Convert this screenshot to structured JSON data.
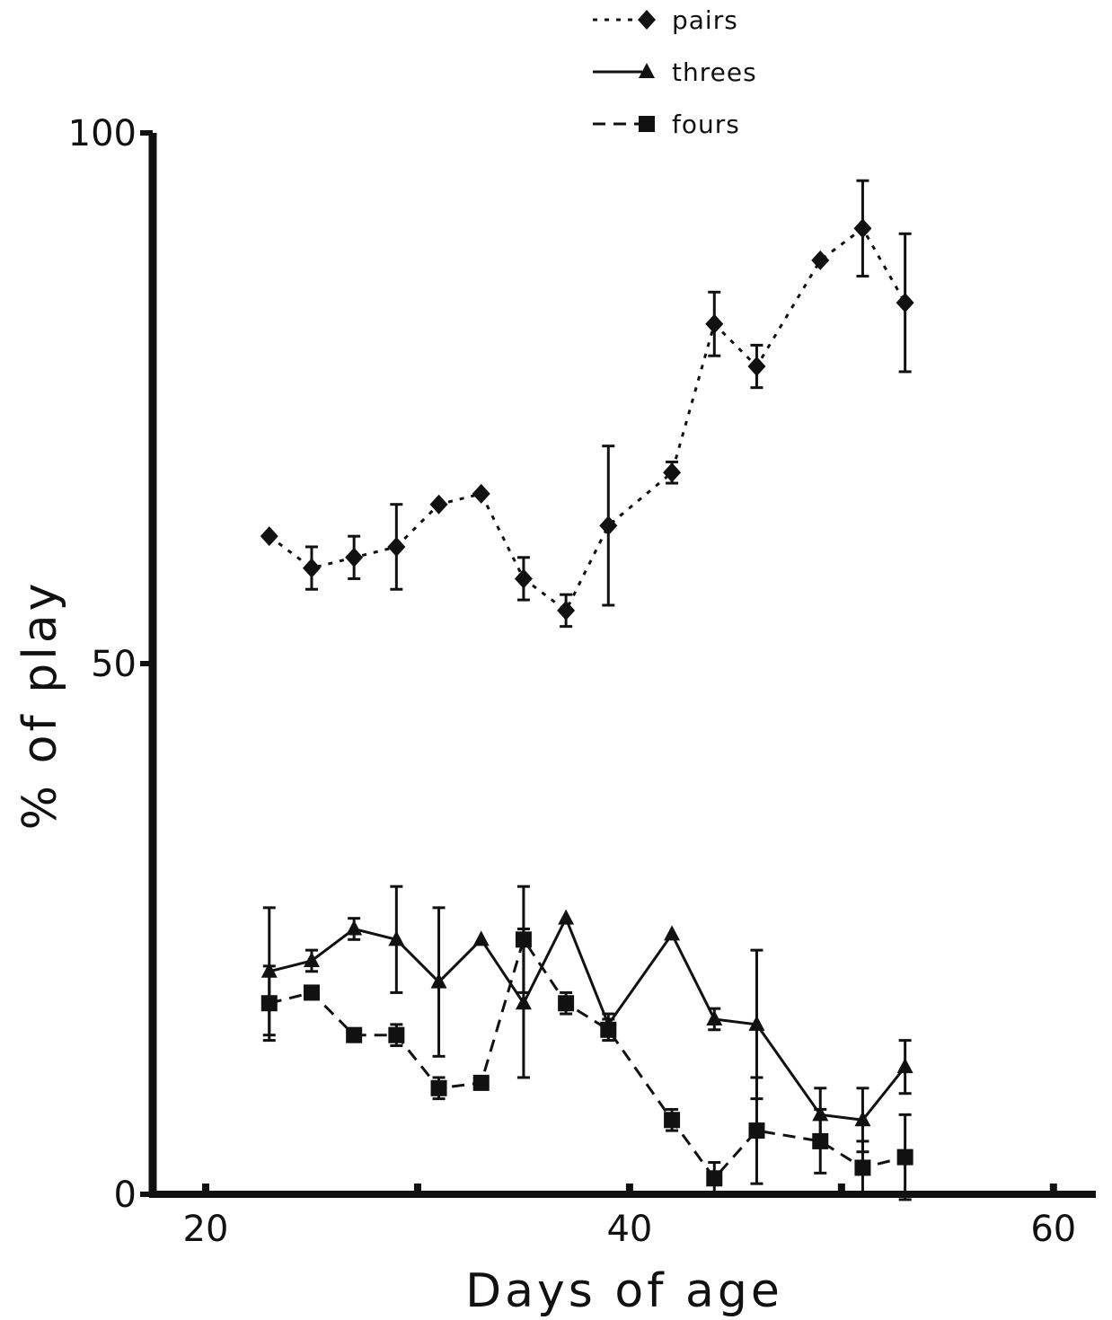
{
  "chart_data": {
    "type": "line",
    "title": "",
    "xlabel": "Days of age",
    "ylabel": "% of play",
    "xlim": [
      17.5,
      62
    ],
    "ylim": [
      0,
      100
    ],
    "xticks": [
      20,
      40,
      60
    ],
    "yticks": [
      0,
      50,
      100
    ],
    "legend_position": "top-center",
    "series": [
      {
        "name": "pairs",
        "style": "dotted",
        "marker": "diamond",
        "x": [
          23,
          25,
          27,
          29,
          31,
          33,
          35,
          37,
          39,
          42,
          44,
          46,
          49,
          51,
          53
        ],
        "y": [
          62,
          59,
          60,
          61,
          65,
          66,
          58,
          55,
          63,
          68,
          82,
          78,
          88,
          91,
          84
        ],
        "yerr": [
          0,
          2,
          2,
          4,
          0,
          0,
          2,
          1.5,
          7.5,
          1,
          3,
          2,
          0,
          4.5,
          6.5
        ]
      },
      {
        "name": "threes",
        "style": "solid",
        "marker": "triangle",
        "x": [
          23,
          25,
          27,
          29,
          31,
          33,
          35,
          37,
          39,
          42,
          44,
          46,
          49,
          51,
          53
        ],
        "y": [
          21,
          22,
          25,
          24,
          20,
          24,
          18,
          26,
          16,
          24.5,
          16.5,
          16,
          7.5,
          7,
          12
        ],
        "yerr": [
          6,
          1,
          1,
          5,
          7,
          0,
          7,
          0,
          1,
          0,
          1,
          7,
          2.5,
          3,
          2.5
        ]
      },
      {
        "name": "fours",
        "style": "dashed",
        "marker": "square",
        "x": [
          23,
          25,
          27,
          29,
          31,
          33,
          35,
          37,
          39,
          42,
          44,
          46,
          49,
          51,
          53
        ],
        "y": [
          18,
          19,
          15,
          15,
          10,
          10.5,
          24,
          18,
          15.5,
          7,
          1.5,
          6,
          5,
          2.5,
          3.5
        ],
        "yerr": [
          3.5,
          0,
          0,
          1,
          1,
          0,
          5,
          1,
          1,
          1,
          1.5,
          5,
          3,
          2.5,
          4
        ]
      }
    ]
  }
}
